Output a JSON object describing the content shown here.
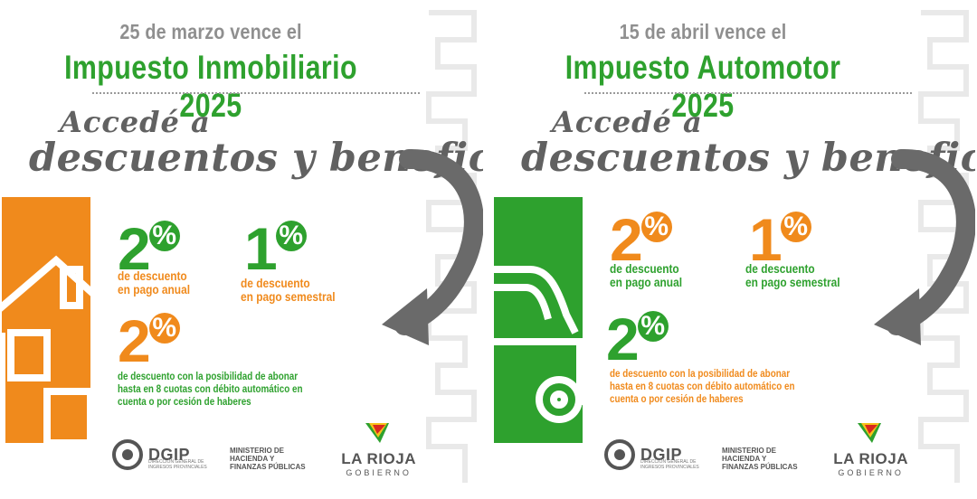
{
  "colors": {
    "green": "#2ea12e",
    "orange": "#f08a1c",
    "gray": "#616161",
    "lightgray": "#8f8f8f"
  },
  "panels": [
    {
      "date_line": "25 de marzo vence el",
      "tax_line": "Impuesto  Inmobiliario  2025",
      "headline_1": "Accedé a",
      "headline_2": "descuentos y beneficios",
      "side_icon": "house-icon",
      "offer_annual": {
        "value": "2",
        "sign": "%",
        "caption_1": "de descuento",
        "caption_2": "en pago anual"
      },
      "offer_semester": {
        "value": "1",
        "sign": "%",
        "caption_1": "de descuento",
        "caption_2": "en pago semestral"
      },
      "offer_installments": {
        "value": "2",
        "sign": "%",
        "line_1": "de descuento con la posibilidad de abonar",
        "line_2": "hasta en 8 cuotas con débito automático en",
        "line_3": "cuenta o por cesión de haberes"
      },
      "footer": {
        "dgip": "DGIP",
        "dgip_sub": "DIRECCIÓN GENERAL DE INGRESOS PROVINCIALES",
        "ministry_1": "MINISTERIO DE",
        "ministry_2": "HACIENDA Y",
        "ministry_3": "FINANZAS PÚBLICAS",
        "province": "LA RIOJA",
        "province_sub": "GOBIERNO"
      }
    },
    {
      "date_line": "15 de abril vence el",
      "tax_line": "Impuesto  Automotor  2025",
      "headline_1": "Accedé a",
      "headline_2": "descuentos y beneficios",
      "side_icon": "car-icon",
      "offer_annual": {
        "value": "2",
        "sign": "%",
        "caption_1": "de descuento",
        "caption_2": "en pago anual"
      },
      "offer_semester": {
        "value": "1",
        "sign": "%",
        "caption_1": "de descuento",
        "caption_2": "en pago semestral"
      },
      "offer_installments": {
        "value": "2",
        "sign": "%",
        "line_1": "de descuento con la posibilidad de abonar",
        "line_2": "hasta en 8 cuotas con débito automático en",
        "line_3": "cuenta o por cesión de haberes"
      },
      "footer": {
        "dgip": "DGIP",
        "dgip_sub": "DIRECCIÓN GENERAL DE INGRESOS PROVINCIALES",
        "ministry_1": "MINISTERIO DE",
        "ministry_2": "HACIENDA Y",
        "ministry_3": "FINANZAS PÚBLICAS",
        "province": "LA RIOJA",
        "province_sub": "GOBIERNO"
      }
    }
  ]
}
